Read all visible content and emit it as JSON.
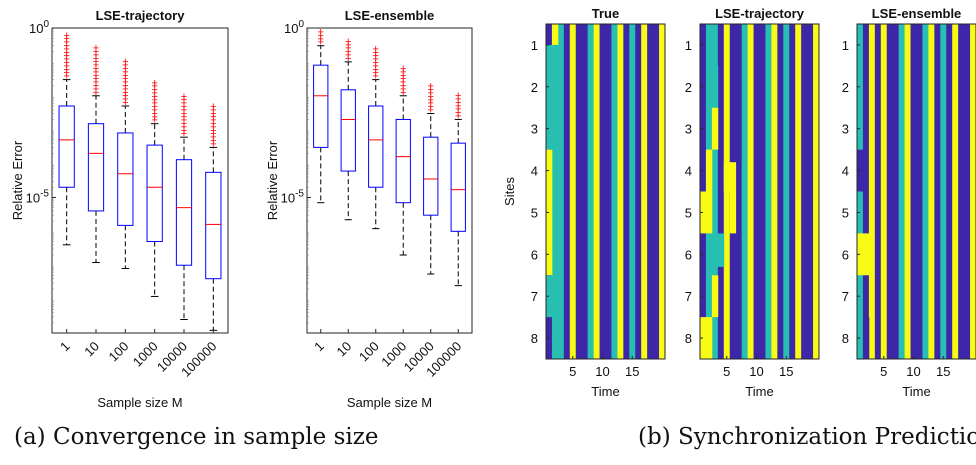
{
  "captions": {
    "a": "(a) Convergence in sample size",
    "b": "(b) Synchronization Prediction"
  },
  "colors": {
    "box": "#0000ff",
    "median": "#ff0000",
    "outlier": "#ff0000",
    "whisker": "#000000",
    "heatmap": [
      "#3e26a8",
      "#26bfb2",
      "#f9fb15"
    ]
  },
  "chart_data": [
    {
      "type": "boxplot",
      "title": "LSE-trajectory",
      "xlabel": "Sample size M",
      "ylabel": "Relative Error",
      "yscale": "log",
      "ylim": [
        1e-09,
        1
      ],
      "yticks": [
        {
          "value": 1,
          "label": "10^0"
        },
        {
          "value": 1e-05,
          "label": "10^-5"
        }
      ],
      "categories": [
        "1",
        "10",
        "100",
        "1000",
        "10000",
        "100000"
      ],
      "boxes": [
        {
          "whisker_low": 4e-07,
          "q1": 2e-05,
          "median": 0.0005,
          "q3": 0.005,
          "whisker_high": 0.03,
          "outliers_to": 0.7
        },
        {
          "whisker_low": 1.2e-07,
          "q1": 4e-06,
          "median": 0.0002,
          "q3": 0.0015,
          "whisker_high": 0.01,
          "outliers_to": 0.28
        },
        {
          "whisker_low": 8e-08,
          "q1": 1.5e-06,
          "median": 5e-05,
          "q3": 0.0008,
          "whisker_high": 0.005,
          "outliers_to": 0.13
        },
        {
          "whisker_low": 1.2e-08,
          "q1": 5e-07,
          "median": 2e-05,
          "q3": 0.00035,
          "whisker_high": 0.0015,
          "outliers_to": 0.03
        },
        {
          "whisker_low": 2.5e-09,
          "q1": 1e-07,
          "median": 5e-06,
          "q3": 0.00013,
          "whisker_high": 0.0006,
          "outliers_to": 0.012
        },
        {
          "whisker_low": 1.2e-09,
          "q1": 4e-08,
          "median": 1.6e-06,
          "q3": 5.5e-05,
          "whisker_high": 0.0003,
          "outliers_to": 0.006
        }
      ]
    },
    {
      "type": "boxplot",
      "title": "LSE-ensemble",
      "xlabel": "Sample size M",
      "ylabel": "Relative Error",
      "yscale": "log",
      "ylim": [
        1e-09,
        1
      ],
      "yticks": [
        {
          "value": 1,
          "label": "10^0"
        },
        {
          "value": 1e-05,
          "label": "10^-5"
        }
      ],
      "categories": [
        "1",
        "10",
        "100",
        "1000",
        "10000",
        "100000"
      ],
      "boxes": [
        {
          "whisker_low": 7e-06,
          "q1": 0.0003,
          "median": 0.01,
          "q3": 0.08,
          "whisker_high": 0.3,
          "outliers_to": 1
        },
        {
          "whisker_low": 2.2e-06,
          "q1": 6e-05,
          "median": 0.002,
          "q3": 0.015,
          "whisker_high": 0.1,
          "outliers_to": 0.5
        },
        {
          "whisker_low": 1.2e-06,
          "q1": 2e-05,
          "median": 0.0005,
          "q3": 0.005,
          "whisker_high": 0.03,
          "outliers_to": 0.26
        },
        {
          "whisker_low": 2e-07,
          "q1": 7e-06,
          "median": 0.00016,
          "q3": 0.002,
          "whisker_high": 0.01,
          "outliers_to": 0.08
        },
        {
          "whisker_low": 5.5e-08,
          "q1": 3e-06,
          "median": 3.5e-05,
          "q3": 0.0006,
          "whisker_high": 0.003,
          "outliers_to": 0.024
        },
        {
          "whisker_low": 2.5e-08,
          "q1": 1e-06,
          "median": 1.7e-05,
          "q3": 0.0004,
          "whisker_high": 0.002,
          "outliers_to": 0.012
        }
      ]
    },
    {
      "type": "heatmap",
      "title": "True",
      "xlabel": "Time",
      "ylabel": "Sites",
      "yticks": [
        1,
        2,
        3,
        4,
        5,
        6,
        7,
        8
      ],
      "xticks": [
        5,
        10,
        15
      ],
      "n_time": 20,
      "sites": 8,
      "column_pattern": [
        "B",
        "T",
        "T",
        "B",
        "Y",
        "B",
        "B",
        "T",
        "Y",
        "B",
        "B",
        "T",
        "Y",
        "B",
        "T",
        "B",
        "Y",
        "B",
        "B",
        "Y"
      ],
      "overrides": [
        {
          "site_from": 1.0,
          "site_to": 3.5,
          "times": [
            1
          ],
          "value": "T"
        },
        {
          "site_from": 0.5,
          "site_to": 1.0,
          "times": [
            2
          ],
          "value": "Y"
        },
        {
          "site_from": 3.5,
          "site_to": 6.5,
          "times": [
            1
          ],
          "value": "Y"
        },
        {
          "site_from": 6.5,
          "site_to": 7.5,
          "times": [
            1
          ],
          "value": "T"
        }
      ]
    },
    {
      "type": "heatmap",
      "title": "LSE-trajectory",
      "xlabel": "Time",
      "ylabel": "",
      "yticks": [
        1,
        2,
        3,
        4,
        5,
        6,
        7,
        8
      ],
      "xticks": [
        5,
        10,
        15
      ],
      "n_time": 20,
      "sites": 8,
      "column_pattern": [
        "B",
        "T",
        "T",
        "B",
        "Y",
        "B",
        "B",
        "T",
        "Y",
        "B",
        "B",
        "T",
        "Y",
        "B",
        "T",
        "B",
        "Y",
        "B",
        "B",
        "Y"
      ],
      "overrides": [
        {
          "site_from": 1.5,
          "site_to": 2.5,
          "times": [
            2,
            3
          ],
          "value": "T"
        },
        {
          "site_from": 2.5,
          "site_to": 3.5,
          "times": [
            3
          ],
          "value": "Y"
        },
        {
          "site_from": 3.5,
          "site_to": 4.5,
          "times": [
            2
          ],
          "value": "Y"
        },
        {
          "site_from": 3.8,
          "site_to": 4.5,
          "times": [
            5,
            6
          ],
          "value": "Y"
        },
        {
          "site_from": 4.5,
          "site_to": 5.5,
          "times": [
            1,
            2,
            6
          ],
          "value": "Y"
        },
        {
          "site_from": 5.5,
          "site_to": 6.3,
          "times": [
            3,
            4
          ],
          "value": "T"
        },
        {
          "site_from": 6.5,
          "site_to": 7.5,
          "times": [
            3
          ],
          "value": "Y"
        },
        {
          "site_from": 7.5,
          "site_to": 8.5,
          "times": [
            1,
            2
          ],
          "value": "Y"
        }
      ]
    },
    {
      "type": "heatmap",
      "title": "LSE-ensemble",
      "xlabel": "Time",
      "ylabel": "",
      "yticks": [
        1,
        2,
        3,
        4,
        5,
        6,
        7,
        8
      ],
      "xticks": [
        5,
        10,
        15
      ],
      "n_time": 20,
      "sites": 8,
      "column_pattern": [
        "T",
        "B",
        "Y",
        "B",
        "Y",
        "B",
        "B",
        "T",
        "Y",
        "B",
        "B",
        "T",
        "Y",
        "B",
        "T",
        "B",
        "Y",
        "B",
        "B",
        "Y"
      ],
      "overrides": [
        {
          "site_from": 3.5,
          "site_to": 4.5,
          "times": [
            1
          ],
          "value": "B"
        },
        {
          "site_from": 5.5,
          "site_to": 6.5,
          "times": [
            1,
            2
          ],
          "value": "Y"
        },
        {
          "site_from": 7.5,
          "site_to": 8.5,
          "times": [
            2
          ],
          "value": "B"
        }
      ]
    }
  ]
}
